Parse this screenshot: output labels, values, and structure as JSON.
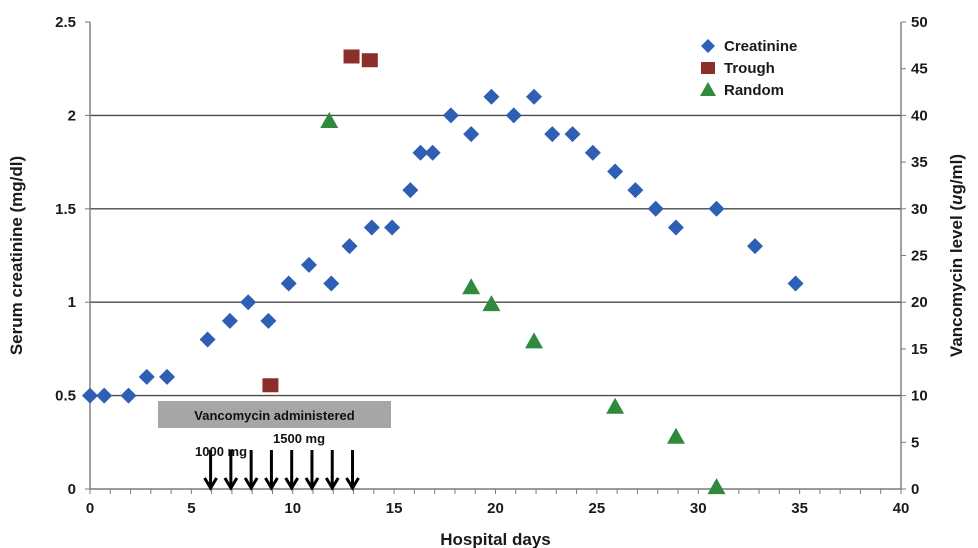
{
  "chart_data": {
    "type": "scatter",
    "xlabel": "Hospital days",
    "ylabel_left": "Serum creatinine (mg/dl)",
    "ylabel_right": "Vancomycin level (ug/ml)",
    "xlim": [
      0,
      40
    ],
    "ylim_left": [
      0,
      2.5
    ],
    "ylim_right": [
      0,
      50
    ],
    "x_ticks": [
      0,
      5,
      10,
      15,
      20,
      25,
      30,
      35,
      40
    ],
    "y_left_ticks": [
      "0",
      "0.5",
      "1",
      "1.5",
      "2",
      "2.5"
    ],
    "y_left_tick_values": [
      0,
      0.5,
      1,
      1.5,
      2,
      2.5
    ],
    "y_right_ticks": [
      0,
      5,
      10,
      15,
      20,
      25,
      30,
      35,
      40,
      45,
      50
    ],
    "gridlines_y_left": [
      0.5,
      1,
      1.5,
      2
    ],
    "legend_position": "top-right",
    "series": [
      {
        "name": "Creatinine",
        "axis": "left",
        "marker": "diamond",
        "color": "#2e5fb5",
        "points": [
          [
            0,
            0.5
          ],
          [
            0.7,
            0.5
          ],
          [
            1.9,
            0.5
          ],
          [
            2.8,
            0.6
          ],
          [
            3.8,
            0.6
          ],
          [
            5.8,
            0.8
          ],
          [
            6.9,
            0.9
          ],
          [
            7.8,
            1.0
          ],
          [
            8.8,
            0.9
          ],
          [
            9.8,
            1.1
          ],
          [
            10.8,
            1.2
          ],
          [
            11.9,
            1.1
          ],
          [
            12.8,
            1.3
          ],
          [
            13.9,
            1.4
          ],
          [
            14.9,
            1.4
          ],
          [
            15.8,
            1.6
          ],
          [
            16.3,
            1.8
          ],
          [
            16.9,
            1.8
          ],
          [
            17.8,
            2.0
          ],
          [
            18.8,
            1.9
          ],
          [
            19.8,
            2.1
          ],
          [
            20.9,
            2.0
          ],
          [
            21.9,
            2.1
          ],
          [
            22.8,
            1.9
          ],
          [
            23.8,
            1.9
          ],
          [
            24.8,
            1.8
          ],
          [
            25.9,
            1.7
          ],
          [
            26.9,
            1.6
          ],
          [
            27.9,
            1.5
          ],
          [
            28.9,
            1.4
          ],
          [
            30.9,
            1.5
          ],
          [
            32.8,
            1.3
          ],
          [
            34.8,
            1.1
          ]
        ]
      },
      {
        "name": "Trough",
        "axis": "right",
        "marker": "square",
        "color": "#8b2f2a",
        "points": [
          [
            8.9,
            11
          ],
          [
            12.9,
            46.2
          ],
          [
            13.8,
            45.8
          ]
        ]
      },
      {
        "name": "Random",
        "axis": "right",
        "marker": "triangle",
        "color": "#2e8b3e",
        "points": [
          [
            11.8,
            39.4
          ],
          [
            18.8,
            21.6
          ],
          [
            19.8,
            19.8
          ],
          [
            21.9,
            15.8
          ],
          [
            25.9,
            8.8
          ],
          [
            28.9,
            5.6
          ],
          [
            30.9,
            0.2
          ]
        ]
      }
    ],
    "annotations": {
      "banner": "Vancomycin administered",
      "dose_1": "1000 mg",
      "dose_2": "1500 mg",
      "dose_days": [
        5.8,
        6.8,
        7.8,
        8.8,
        9.8,
        10.8,
        11.8,
        12.8
      ]
    }
  }
}
